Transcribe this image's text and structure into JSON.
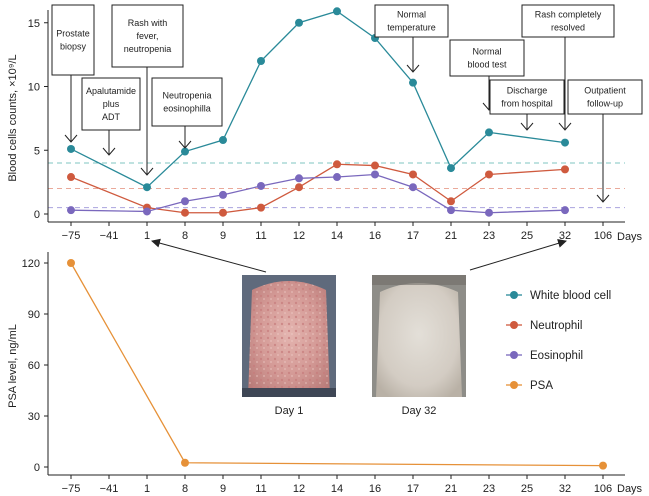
{
  "colors": {
    "wbc": "#2a8a99",
    "neutrophil": "#cf5a3e",
    "eosinophil": "#7a68bd",
    "psa": "#e69138",
    "wbc_ref": "#7fc6c2",
    "neu_ref": "#eaa99a",
    "eos_ref": "#a9a2de"
  },
  "chart_data": [
    {
      "type": "line",
      "ylabel": "Blood cells counts, ×10⁹/L",
      "xlabel": "Days",
      "categories": [
        "−75",
        "−41",
        "1",
        "8",
        "9",
        "11",
        "12",
        "14",
        "16",
        "17",
        "21",
        "23",
        "25",
        "32",
        "106"
      ],
      "ylim": [
        0,
        16
      ],
      "yticks": [
        0,
        5,
        10,
        15
      ],
      "series": [
        {
          "name": "White blood cell",
          "key": "wbc",
          "x": [
            0,
            2,
            3,
            4,
            5,
            6,
            7,
            8,
            9,
            10,
            11,
            13
          ],
          "values": [
            5.1,
            2.1,
            4.9,
            5.8,
            12.0,
            15.0,
            15.9,
            13.8,
            10.3,
            3.6,
            6.4,
            5.6
          ]
        },
        {
          "name": "Neutrophil",
          "key": "neutrophil",
          "x": [
            0,
            2,
            3,
            4,
            5,
            6,
            7,
            8,
            9,
            10,
            11,
            13
          ],
          "values": [
            2.9,
            0.5,
            0.1,
            0.1,
            0.5,
            2.1,
            3.9,
            3.8,
            3.1,
            1.0,
            3.1,
            3.5
          ]
        },
        {
          "name": "Eosinophil",
          "key": "eosinophil",
          "x": [
            0,
            2,
            3,
            4,
            5,
            6,
            7,
            8,
            9,
            10,
            11,
            13
          ],
          "values": [
            0.3,
            0.2,
            1.0,
            1.5,
            2.2,
            2.8,
            2.9,
            3.1,
            2.1,
            0.3,
            0.1,
            0.3
          ]
        }
      ],
      "reference_lines": [
        {
          "key": "wbc_ref",
          "value": 4.0
        },
        {
          "key": "neu_ref",
          "value": 2.0
        },
        {
          "key": "eos_ref",
          "value": 0.5
        }
      ],
      "annotations": [
        {
          "lines": [
            "Prostate",
            "biopsy"
          ],
          "x": 0
        },
        {
          "lines": [
            "Apalutamide",
            "plus",
            "ADT"
          ],
          "x": 1
        },
        {
          "lines": [
            "Rash with",
            "fever,",
            "neutropenia"
          ],
          "x": 2
        },
        {
          "lines": [
            "Neutropenia",
            "eosinophilla"
          ],
          "x": 3
        },
        {
          "lines": [
            "Normal",
            "temperature"
          ],
          "x": 9
        },
        {
          "lines": [
            "Normal",
            "blood test"
          ],
          "x": 11
        },
        {
          "lines": [
            "Discharge",
            "from hospital"
          ],
          "x": 12
        },
        {
          "lines": [
            "Rash completely",
            "resolved"
          ],
          "x": 13
        },
        {
          "lines": [
            "Outpatient",
            "follow-up"
          ],
          "x": 14
        }
      ]
    },
    {
      "type": "line",
      "ylabel": "PSA level, ng/mL",
      "xlabel": "Days",
      "categories": [
        "−75",
        "−41",
        "1",
        "8",
        "9",
        "11",
        "12",
        "14",
        "16",
        "17",
        "21",
        "23",
        "25",
        "32",
        "106"
      ],
      "ylim": [
        0,
        120
      ],
      "yticks": [
        0,
        30,
        60,
        90,
        120
      ],
      "series": [
        {
          "name": "PSA",
          "key": "psa",
          "x": [
            0,
            3,
            14
          ],
          "values": [
            120,
            2.5,
            0.8
          ]
        }
      ]
    }
  ],
  "legend": [
    {
      "label": "White blood cell",
      "key": "wbc"
    },
    {
      "label": "Neutrophil",
      "key": "neutrophil"
    },
    {
      "label": "Eosinophil",
      "key": "eosinophil"
    },
    {
      "label": "PSA",
      "key": "psa"
    }
  ],
  "photos": [
    {
      "caption": "Day 1"
    },
    {
      "caption": "Day 32"
    }
  ]
}
